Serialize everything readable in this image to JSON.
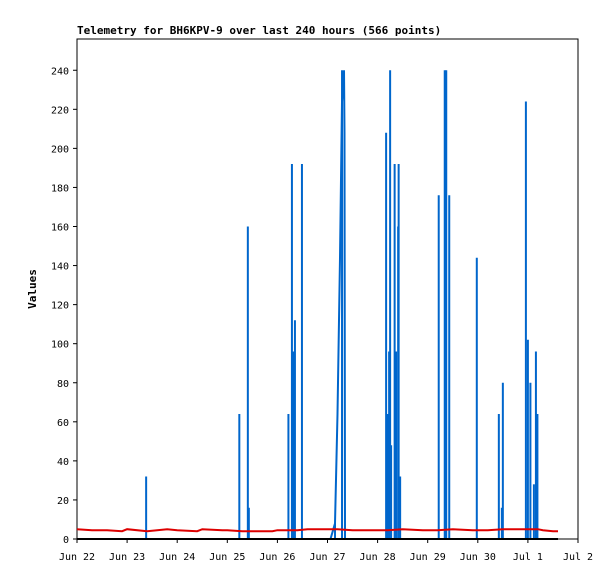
{
  "chart_data": {
    "type": "line",
    "title": "Telemetry for BH6KPV-9 over last 240 hours (566 points)",
    "xlabel": "",
    "ylabel": "Values",
    "x_tick_labels": [
      "Jun 22",
      "Jun 23",
      "Jun 24",
      "Jun 25",
      "Jun 26",
      "Jun 27",
      "Jun 28",
      "Jun 29",
      "Jun 30",
      "Jul 1",
      "Jul 2"
    ],
    "y_ticks": [
      0,
      20,
      40,
      60,
      80,
      100,
      120,
      140,
      160,
      180,
      200,
      220,
      240
    ],
    "xlim": [
      0,
      10
    ],
    "ylim": [
      0,
      256
    ],
    "grid": false,
    "legend": "none",
    "colors": {
      "blue": "#0066cc",
      "red": "#dd0000",
      "black": "#000000"
    },
    "series": [
      {
        "color": "#0066cc",
        "kind": "spikes",
        "points": [
          [
            1.38,
            32
          ],
          [
            3.24,
            64
          ],
          [
            3.41,
            160
          ],
          [
            3.43,
            16
          ],
          [
            4.22,
            64
          ],
          [
            4.29,
            192
          ],
          [
            4.32,
            96
          ],
          [
            4.35,
            112
          ],
          [
            4.49,
            192
          ],
          [
            5.29,
            240
          ],
          [
            5.15,
            8
          ],
          [
            6.17,
            208
          ],
          [
            6.2,
            64
          ],
          [
            6.23,
            96
          ],
          [
            6.25,
            240
          ],
          [
            6.27,
            48
          ],
          [
            6.34,
            192
          ],
          [
            6.37,
            96
          ],
          [
            6.41,
            160
          ],
          [
            6.42,
            192
          ],
          [
            6.45,
            32
          ],
          [
            7.22,
            176
          ],
          [
            7.34,
            240
          ],
          [
            7.37,
            240
          ],
          [
            7.43,
            176
          ],
          [
            7.98,
            144
          ],
          [
            8.42,
            64
          ],
          [
            8.48,
            16
          ],
          [
            8.5,
            80
          ],
          [
            8.96,
            224
          ],
          [
            9.0,
            102
          ],
          [
            9.05,
            80
          ],
          [
            9.12,
            28
          ],
          [
            9.16,
            96
          ],
          [
            9.19,
            64
          ]
        ],
        "ramp": [
          [
            5.06,
            0
          ],
          [
            5.15,
            8
          ],
          [
            5.2,
            64
          ],
          [
            5.25,
            144
          ],
          [
            5.29,
            224
          ],
          [
            5.33,
            240
          ],
          [
            5.34,
            208
          ],
          [
            5.35,
            0
          ]
        ]
      },
      {
        "color": "#dd0000",
        "kind": "line",
        "x": [
          0,
          0.3,
          0.6,
          0.9,
          1.0,
          1.4,
          1.8,
          2.0,
          2.4,
          2.5,
          2.9,
          3.0,
          3.3,
          3.6,
          3.9,
          4.0,
          4.4,
          4.6,
          4.9,
          5.2,
          5.5,
          5.9,
          6.2,
          6.5,
          6.9,
          7.2,
          7.5,
          7.9,
          8.2,
          8.5,
          8.9,
          9.2,
          9.3,
          9.5,
          9.6
        ],
        "values": [
          5,
          4.5,
          4.5,
          4,
          5,
          4,
          5,
          4.5,
          4,
          5,
          4.5,
          4.5,
          4,
          4,
          4,
          4.5,
          4.5,
          5,
          5,
          5,
          4.5,
          4.5,
          4.5,
          5,
          4.5,
          4.5,
          5,
          4.5,
          4.5,
          5,
          5,
          5,
          4.5,
          4,
          4
        ]
      },
      {
        "color": "#000000",
        "kind": "line",
        "x": [
          0,
          9.6
        ],
        "values": [
          0,
          0
        ]
      }
    ]
  }
}
